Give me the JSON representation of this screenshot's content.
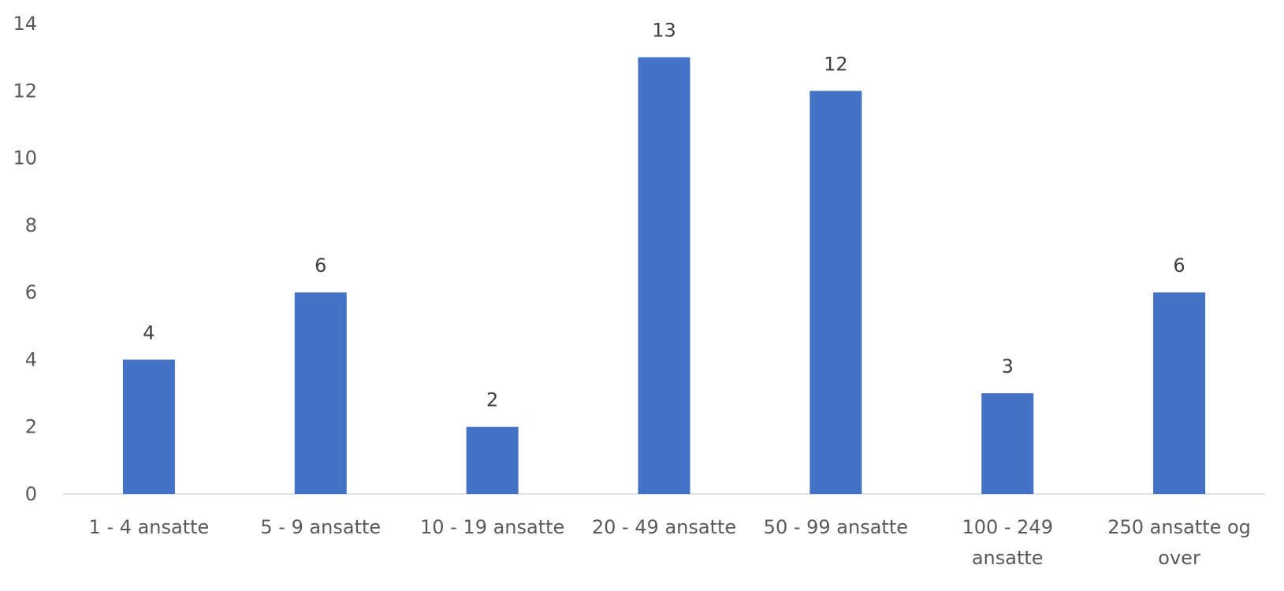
{
  "chart_data": {
    "type": "bar",
    "categories": [
      [
        "1 - 4 ansatte"
      ],
      [
        "5 - 9 ansatte"
      ],
      [
        "10 - 19 ansatte"
      ],
      [
        "20 - 49 ansatte"
      ],
      [
        "50 - 99 ansatte"
      ],
      [
        "100 - 249",
        "ansatte"
      ],
      [
        "250 ansatte og",
        "over"
      ]
    ],
    "series": [
      {
        "values": [
          4,
          6,
          2,
          13,
          12,
          3,
          6
        ],
        "color": "#4472C4"
      }
    ],
    "ylim": [
      0,
      14
    ],
    "yticks": [
      0,
      2,
      4,
      6,
      8,
      10,
      12,
      14
    ],
    "grid": false,
    "data_labels": true,
    "legend": "none"
  }
}
